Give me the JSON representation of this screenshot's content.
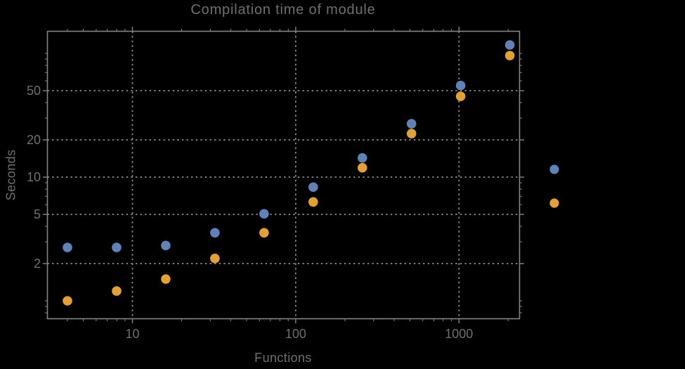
{
  "chart_data": {
    "type": "scatter",
    "title": "Compilation time of module",
    "xlabel": "Functions",
    "ylabel": "Seconds",
    "x_scale": "log",
    "y_scale": "log",
    "x_range": [
      3,
      2350
    ],
    "y_range": [
      0.72,
      150
    ],
    "grid": "dotted lines at labeled ticks",
    "x_ticks": [
      {
        "value": 10,
        "label": "10"
      },
      {
        "value": 100,
        "label": "100"
      },
      {
        "value": 1000,
        "label": "1000"
      }
    ],
    "y_ticks": [
      {
        "value": 2,
        "label": "2"
      },
      {
        "value": 5,
        "label": "5"
      },
      {
        "value": 10,
        "label": "10"
      },
      {
        "value": 20,
        "label": "20"
      },
      {
        "value": 50,
        "label": "50"
      }
    ],
    "x_minor_ticks": [
      4,
      5,
      6,
      7,
      8,
      9,
      20,
      30,
      40,
      50,
      60,
      70,
      80,
      90,
      200,
      300,
      400,
      500,
      600,
      700,
      800,
      900,
      2000
    ],
    "y_minor_ticks": [
      0.8,
      0.9,
      1,
      3,
      4,
      6,
      7,
      8,
      9,
      30,
      40,
      60,
      70,
      80,
      90,
      100
    ],
    "x": [
      4,
      8,
      16,
      32,
      64,
      128,
      256,
      512,
      1024,
      2048
    ],
    "series": [
      {
        "name": "series-1",
        "color": "#5E82BA",
        "values": [
          2.7,
          2.7,
          2.8,
          3.55,
          5.05,
          8.3,
          14.3,
          27,
          55,
          117
        ]
      },
      {
        "name": "series-2",
        "color": "#E5A030",
        "values": [
          1.0,
          1.2,
          1.5,
          2.2,
          3.55,
          6.3,
          11.9,
          22.5,
          45,
          96
        ]
      }
    ],
    "legend": {
      "position": "right-outside",
      "entries": [
        {
          "series": "series-1",
          "color": "#5E82BA",
          "label": ""
        },
        {
          "series": "series-2",
          "color": "#E5A030",
          "label": ""
        }
      ]
    }
  },
  "colors": {
    "background": "#000000",
    "frame": "#858585",
    "grid": "#8f8f8f",
    "text": "#6f6f6f"
  }
}
